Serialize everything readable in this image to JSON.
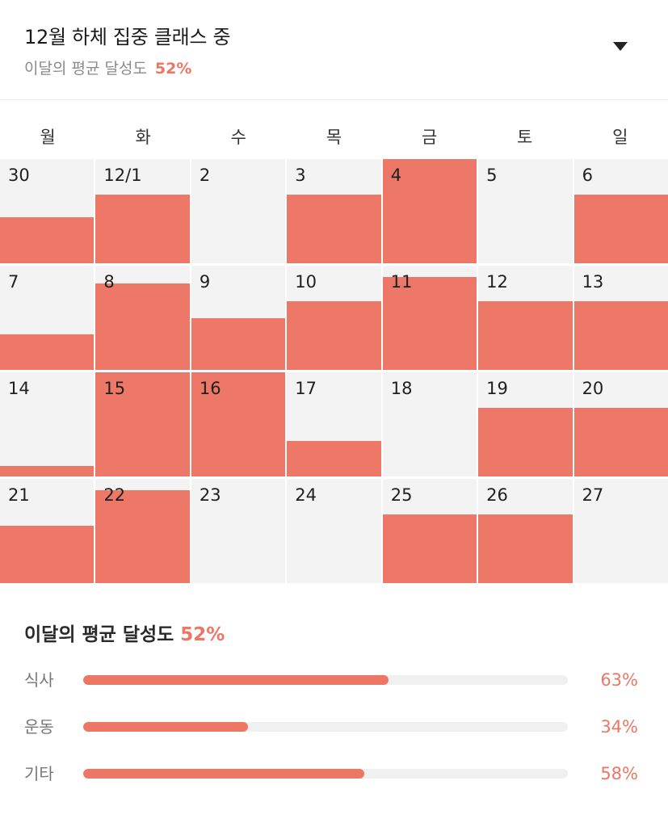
{
  "header": {
    "title": "12월 하체 집중 클래스 중",
    "subtitle_label": "이달의 평균 달성도",
    "subtitle_value": "52%"
  },
  "weekdays": [
    "월",
    "화",
    "수",
    "목",
    "금",
    "토",
    "일"
  ],
  "days": [
    {
      "label": "30",
      "fill": 0.44
    },
    {
      "label": "12/1",
      "fill": 0.66
    },
    {
      "label": "2",
      "fill": 0
    },
    {
      "label": "3",
      "fill": 0.66
    },
    {
      "label": "4",
      "fill": 1.0
    },
    {
      "label": "5",
      "fill": 0
    },
    {
      "label": "6",
      "fill": 0.66
    },
    {
      "label": "7",
      "fill": 0.34
    },
    {
      "label": "8",
      "fill": 0.83
    },
    {
      "label": "9",
      "fill": 0.5
    },
    {
      "label": "10",
      "fill": 0.66
    },
    {
      "label": "11",
      "fill": 0.89
    },
    {
      "label": "12",
      "fill": 0.66
    },
    {
      "label": "13",
      "fill": 0.66
    },
    {
      "label": "14",
      "fill": 0.1
    },
    {
      "label": "15",
      "fill": 1.0
    },
    {
      "label": "16",
      "fill": 1.0
    },
    {
      "label": "17",
      "fill": 0.34
    },
    {
      "label": "18",
      "fill": 0
    },
    {
      "label": "19",
      "fill": 0.66
    },
    {
      "label": "20",
      "fill": 0.66
    },
    {
      "label": "21",
      "fill": 0.55
    },
    {
      "label": "22",
      "fill": 0.89
    },
    {
      "label": "23",
      "fill": 0
    },
    {
      "label": "24",
      "fill": 0
    },
    {
      "label": "25",
      "fill": 0.66
    },
    {
      "label": "26",
      "fill": 0.66
    },
    {
      "label": "27",
      "fill": 0
    }
  ],
  "summary": {
    "title": "이달의 평균 달성도",
    "value": "52%",
    "stats": [
      {
        "label": "식사",
        "value": "63%",
        "percent": 63
      },
      {
        "label": "운동",
        "value": "34%",
        "percent": 34
      },
      {
        "label": "기타",
        "value": "58%",
        "percent": 58
      }
    ]
  },
  "colors": {
    "accent": "#ec7765",
    "cell_bg": "#f3f3f4"
  }
}
